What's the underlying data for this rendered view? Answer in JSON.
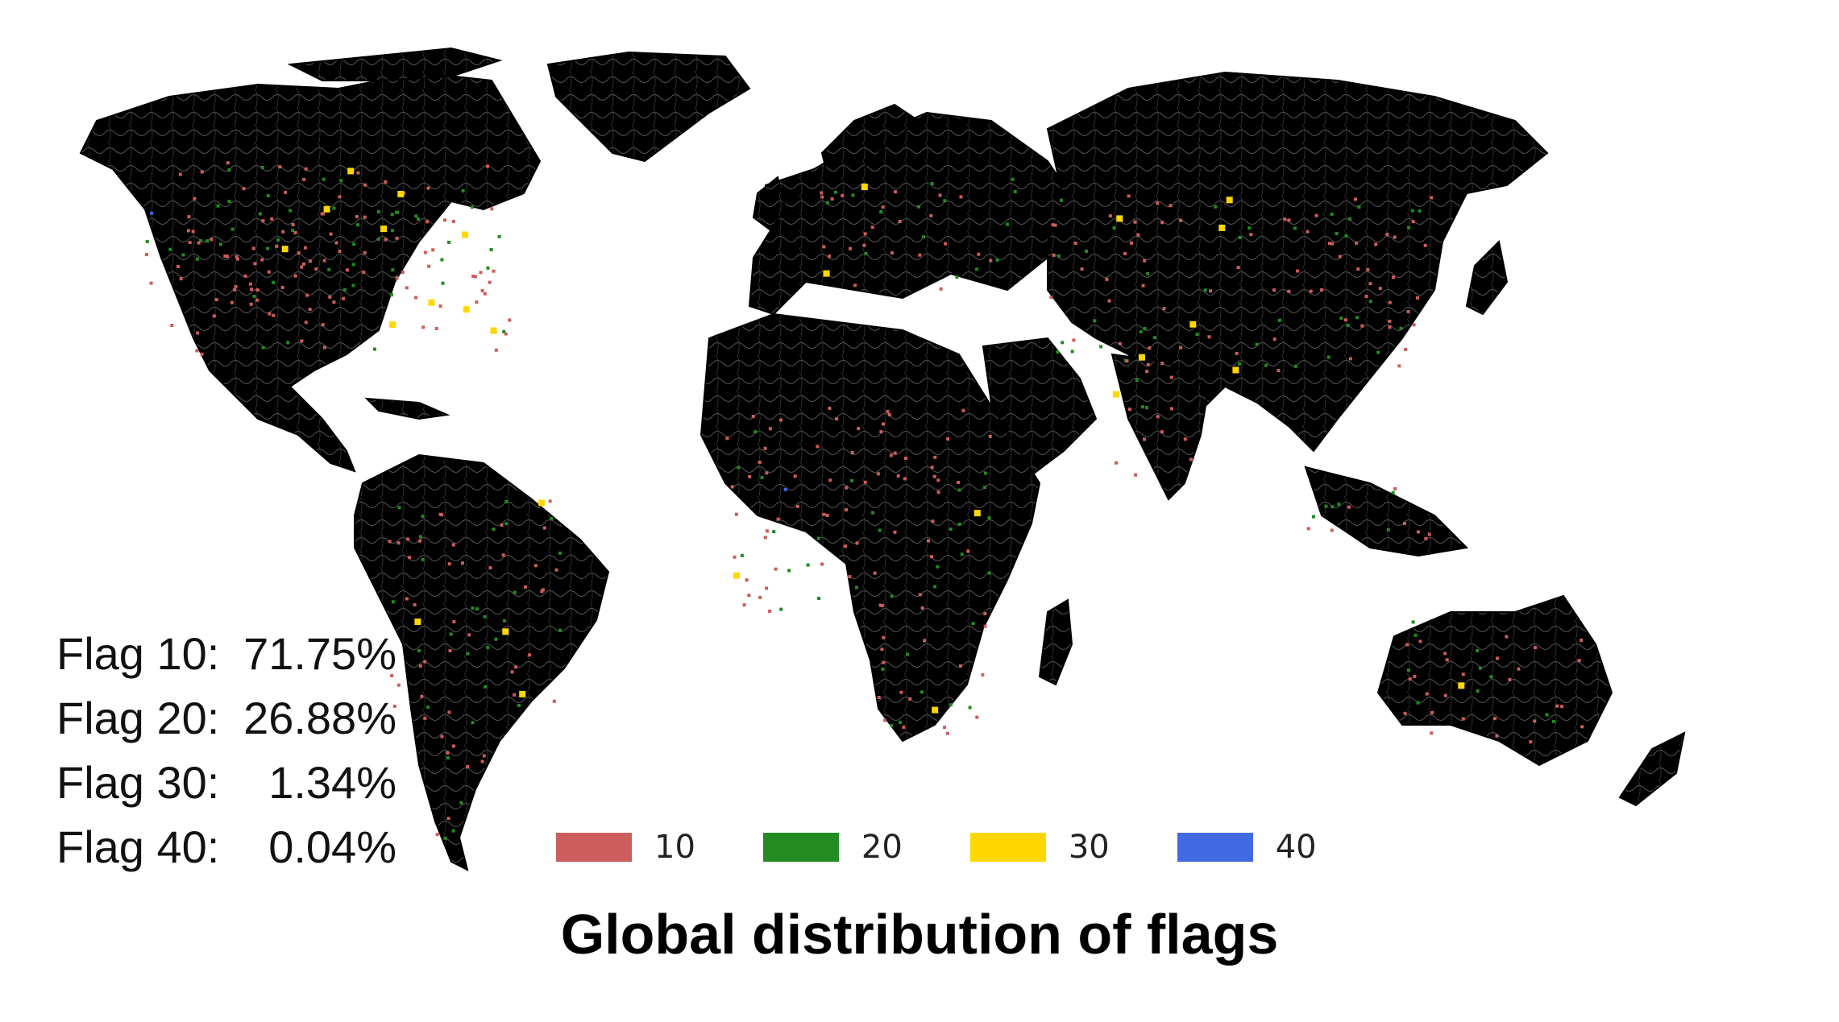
{
  "title": "Global distribution of flags",
  "stats": [
    {
      "label": "Flag 10:",
      "value": "71.75%"
    },
    {
      "label": "Flag 20:",
      "value": "26.88%"
    },
    {
      "label": "Flag 30:",
      "value": "1.34%"
    },
    {
      "label": "Flag 40:",
      "value": "0.04%"
    }
  ],
  "legend": [
    {
      "label": "10",
      "color": "#cd5c5c"
    },
    {
      "label": "20",
      "color": "#228b22"
    },
    {
      "label": "30",
      "color": "#ffd700"
    },
    {
      "label": "40",
      "color": "#4169e1"
    }
  ],
  "map": {
    "land_color": "#000000",
    "river_color": "#d9d9d9",
    "background": "#ffffff"
  }
}
